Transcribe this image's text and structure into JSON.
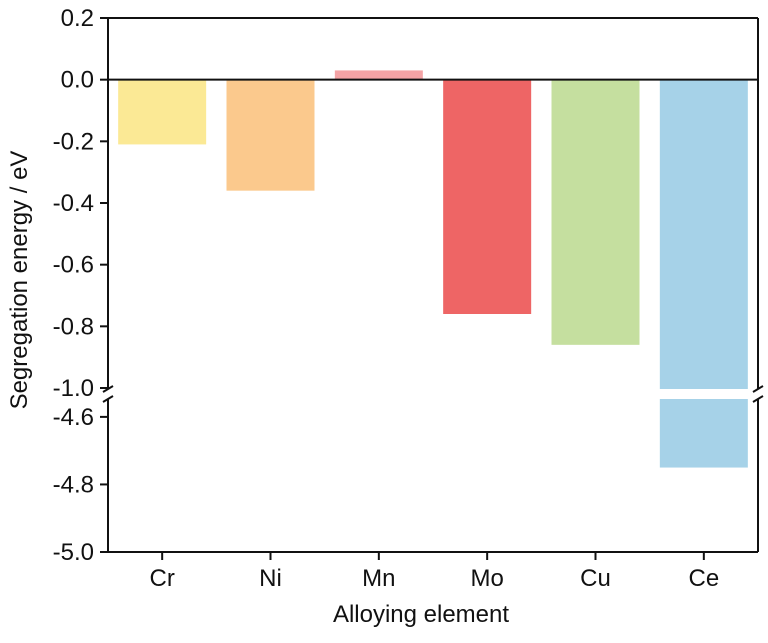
{
  "chart_data": {
    "type": "bar",
    "xlabel": "Alloying element",
    "ylabel": "Segregation energy / eV",
    "categories": [
      "Cr",
      "Ni",
      "Mn",
      "Mo",
      "Cu",
      "Ce"
    ],
    "values": [
      -0.21,
      -0.36,
      0.03,
      -0.76,
      -0.86,
      -4.75
    ],
    "colors": [
      "#fbe995",
      "#fbc98d",
      "#f4a3a5",
      "#ee6565",
      "#c5df9f",
      "#a6d2e8"
    ],
    "axis_break": true,
    "ylim_upper": [
      -1.0,
      0.2
    ],
    "ylim_lower": [
      -5.0,
      -4.55
    ],
    "yticks_upper": [
      "0.2",
      "0.0",
      "-0.2",
      "-0.4",
      "-0.6",
      "-0.8",
      "-1.0"
    ],
    "yticks_lower": [
      "-4.6",
      "-4.8",
      "-5.0"
    ],
    "ytick_values_upper": [
      0.2,
      0.0,
      -0.2,
      -0.4,
      -0.6,
      -0.8,
      -1.0
    ],
    "ytick_values_lower": [
      -4.6,
      -4.8,
      -5.0
    ],
    "zero_line": true,
    "grid": false,
    "legend": "none"
  }
}
